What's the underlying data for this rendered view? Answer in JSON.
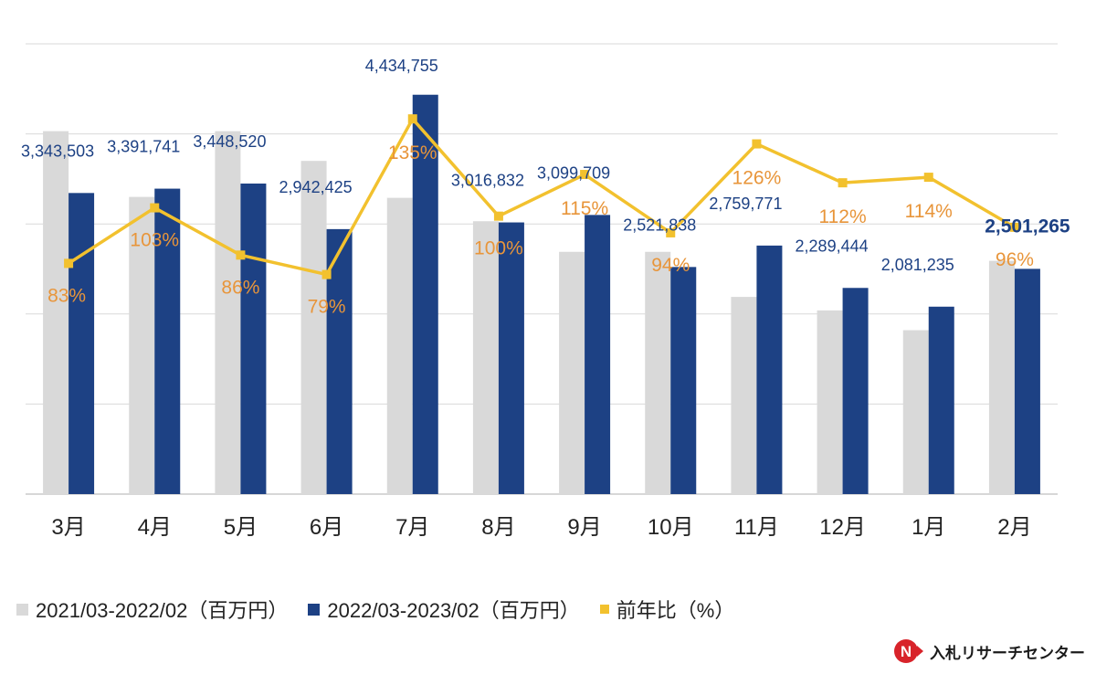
{
  "chart_data": {
    "type": "bar",
    "categories": [
      "3月",
      "4月",
      "5月",
      "6月",
      "7月",
      "8月",
      "9月",
      "10月",
      "11月",
      "12月",
      "1月",
      "2月"
    ],
    "series": [
      {
        "name": "2021/03-2022/02（百万円）",
        "kind": "bar",
        "color": "#d9d9d9",
        "values": [
          4030000,
          3300000,
          4030000,
          3700000,
          3290000,
          3030000,
          2690000,
          2690000,
          2190000,
          2040000,
          1820000,
          2590000
        ]
      },
      {
        "name": "2022/03-2023/02（百万円）",
        "kind": "bar",
        "color": "#1d4184",
        "values": [
          3343503,
          3391741,
          3448520,
          2942425,
          4434755,
          3016832,
          3099709,
          2521838,
          2759771,
          2289444,
          2081235,
          2501265
        ],
        "labels": [
          "3,343,503",
          "3,391,741",
          "3,448,520",
          "2,942,425",
          "4,434,755",
          "3,016,832",
          "3,099,709",
          "2,521,838",
          "2,759,771",
          "2,289,444",
          "2,081,235",
          "2,501,265"
        ],
        "label_color": "#1d4184"
      },
      {
        "name": "前年比（%）",
        "kind": "line",
        "color": "#f2c12e",
        "values": [
          83,
          103,
          86,
          79,
          135,
          100,
          115,
          94,
          126,
          112,
          114,
          96
        ],
        "labels": [
          "83%",
          "103%",
          "86%",
          "79%",
          "135%",
          "100%",
          "115%",
          "94%",
          "126%",
          "112%",
          "114%",
          "96%"
        ],
        "label_color": "#e8953a"
      }
    ],
    "ylim": [
      0,
      5000000
    ],
    "y2lim": [
      0,
      162
    ],
    "grid": true,
    "title": "",
    "xlabel": "",
    "ylabel": "",
    "legend_position": "bottom-left"
  },
  "brand": {
    "name": "入札リサーチセンター",
    "logo_letter": "N"
  },
  "colors": {
    "grid": "#d9d9d9",
    "axis": "#bfbfbf",
    "text": "#222222"
  }
}
